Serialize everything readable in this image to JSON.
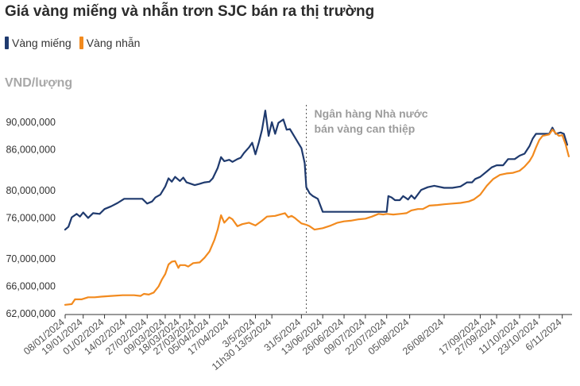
{
  "title": "Giá vàng miếng và nhẫn trơn SJC bán ra thị trường",
  "legend": [
    {
      "label": "Vàng miếng",
      "color": "#1f3a6e"
    },
    {
      "label": "Vàng nhẫn",
      "color": "#f28a1e"
    }
  ],
  "chart_data": {
    "type": "line",
    "title": "Giá vàng miếng và nhẫn trơn SJC bán ra thị trường",
    "ylabel": "VND/lượng",
    "xlabel": "",
    "ylim": [
      62000000,
      93000000
    ],
    "x_range": [
      "2024-01-08",
      "2024-11-11"
    ],
    "grid": false,
    "legend_position": "top-left",
    "y_ticks": [
      62000000,
      66000000,
      70000000,
      76000000,
      80000000,
      86000000,
      90000000
    ],
    "y_tick_labels": [
      "62,000,000",
      "66,000,000",
      "70,000,000",
      "76,000,000",
      "80,000,000",
      "86,000,000",
      "90,000,000"
    ],
    "x_ticks": [
      {
        "date": "2024-01-08",
        "label": "08/01/2024"
      },
      {
        "date": "2024-01-19",
        "label": "19/01/2024"
      },
      {
        "date": "2024-02-01",
        "label": "01/02/2024"
      },
      {
        "date": "2024-02-14",
        "label": "14/02/2024"
      },
      {
        "date": "2024-02-27",
        "label": "27/02/2024"
      },
      {
        "date": "2024-03-09",
        "label": "09/03/2024"
      },
      {
        "date": "2024-03-18",
        "label": "18/03/2024"
      },
      {
        "date": "2024-03-27",
        "label": "27/03/2024"
      },
      {
        "date": "2024-04-05",
        "label": "05/04/2024"
      },
      {
        "date": "2024-04-17",
        "label": "17/04/2024"
      },
      {
        "date": "2024-05-03",
        "label": "3/5/2024"
      },
      {
        "date": "2024-05-13",
        "label": "11h30 13/5/2024"
      },
      {
        "date": "2024-05-31",
        "label": "31/5/2024"
      },
      {
        "date": "2024-06-13",
        "label": "13/06/2024"
      },
      {
        "date": "2024-06-26",
        "label": "26/06/2024"
      },
      {
        "date": "2024-07-09",
        "label": "09/07/2024"
      },
      {
        "date": "2024-07-22",
        "label": "22/07/2024"
      },
      {
        "date": "2024-08-05",
        "label": "05/08/2024"
      },
      {
        "date": "2024-08-26",
        "label": "26/08/2024"
      },
      {
        "date": "2024-09-17",
        "label": "17/09/2024"
      },
      {
        "date": "2024-09-27",
        "label": "27/09/2024"
      },
      {
        "date": "2024-10-11",
        "label": "11/10/2024"
      },
      {
        "date": "2024-10-23",
        "label": "23/10/2024"
      },
      {
        "date": "2024-11-06",
        "label": "6/11/2024"
      }
    ],
    "annotations": [
      {
        "date": "2024-06-03",
        "text": "Ngân hàng Nhà nước bán vàng can thiệp"
      }
    ],
    "series": [
      {
        "name": "Vàng miếng",
        "color": "#1f3a6e",
        "points": [
          [
            "2024-01-08",
            74300000
          ],
          [
            "2024-01-10",
            74700000
          ],
          [
            "2024-01-12",
            76100000
          ],
          [
            "2024-01-15",
            76600000
          ],
          [
            "2024-01-17",
            76200000
          ],
          [
            "2024-01-19",
            76800000
          ],
          [
            "2024-01-22",
            76000000
          ],
          [
            "2024-01-25",
            76700000
          ],
          [
            "2024-01-29",
            76600000
          ],
          [
            "2024-02-01",
            77300000
          ],
          [
            "2024-02-05",
            77700000
          ],
          [
            "2024-02-09",
            78200000
          ],
          [
            "2024-02-13",
            78800000
          ],
          [
            "2024-02-19",
            78800000
          ],
          [
            "2024-02-24",
            78800000
          ],
          [
            "2024-02-27",
            78100000
          ],
          [
            "2024-03-01",
            78400000
          ],
          [
            "2024-03-03",
            79000000
          ],
          [
            "2024-03-06",
            79400000
          ],
          [
            "2024-03-09",
            80600000
          ],
          [
            "2024-03-11",
            81800000
          ],
          [
            "2024-03-13",
            81300000
          ],
          [
            "2024-03-15",
            82000000
          ],
          [
            "2024-03-18",
            81400000
          ],
          [
            "2024-03-20",
            81900000
          ],
          [
            "2024-03-22",
            81200000
          ],
          [
            "2024-03-27",
            80800000
          ],
          [
            "2024-03-30",
            81000000
          ],
          [
            "2024-04-02",
            81200000
          ],
          [
            "2024-04-05",
            81300000
          ],
          [
            "2024-04-07",
            81800000
          ],
          [
            "2024-04-10",
            83300000
          ],
          [
            "2024-04-12",
            84900000
          ],
          [
            "2024-04-14",
            84300000
          ],
          [
            "2024-04-17",
            84500000
          ],
          [
            "2024-04-19",
            84200000
          ],
          [
            "2024-04-22",
            84600000
          ],
          [
            "2024-04-24",
            84800000
          ],
          [
            "2024-04-26",
            85500000
          ],
          [
            "2024-04-29",
            86300000
          ],
          [
            "2024-05-01",
            87000000
          ],
          [
            "2024-05-03",
            85300000
          ],
          [
            "2024-05-05",
            87000000
          ],
          [
            "2024-05-07",
            88900000
          ],
          [
            "2024-05-09",
            91700000
          ],
          [
            "2024-05-11",
            88000000
          ],
          [
            "2024-05-13",
            90000000
          ],
          [
            "2024-05-15",
            88300000
          ],
          [
            "2024-05-17",
            89900000
          ],
          [
            "2024-05-20",
            90400000
          ],
          [
            "2024-05-22",
            88900000
          ],
          [
            "2024-05-24",
            89000000
          ],
          [
            "2024-05-27",
            87800000
          ],
          [
            "2024-05-29",
            87000000
          ],
          [
            "2024-05-31",
            86200000
          ],
          [
            "2024-06-02",
            84000000
          ],
          [
            "2024-06-03",
            80500000
          ],
          [
            "2024-06-05",
            79600000
          ],
          [
            "2024-06-07",
            79200000
          ],
          [
            "2024-06-10",
            78800000
          ],
          [
            "2024-06-13",
            76900000
          ],
          [
            "2024-06-26",
            76900000
          ],
          [
            "2024-07-09",
            76900000
          ],
          [
            "2024-07-22",
            76900000
          ],
          [
            "2024-07-23",
            79200000
          ],
          [
            "2024-07-25",
            79000000
          ],
          [
            "2024-07-27",
            78600000
          ],
          [
            "2024-07-30",
            78600000
          ],
          [
            "2024-08-01",
            79200000
          ],
          [
            "2024-08-04",
            78700000
          ],
          [
            "2024-08-06",
            79300000
          ],
          [
            "2024-08-08",
            78800000
          ],
          [
            "2024-08-12",
            80100000
          ],
          [
            "2024-08-16",
            80500000
          ],
          [
            "2024-08-20",
            80700000
          ],
          [
            "2024-08-26",
            80400000
          ],
          [
            "2024-08-31",
            80400000
          ],
          [
            "2024-09-05",
            80600000
          ],
          [
            "2024-09-09",
            81200000
          ],
          [
            "2024-09-12",
            81200000
          ],
          [
            "2024-09-14",
            81700000
          ],
          [
            "2024-09-17",
            82000000
          ],
          [
            "2024-09-21",
            82800000
          ],
          [
            "2024-09-24",
            83400000
          ],
          [
            "2024-09-27",
            83700000
          ],
          [
            "2024-10-01",
            83700000
          ],
          [
            "2024-10-04",
            84600000
          ],
          [
            "2024-10-08",
            84600000
          ],
          [
            "2024-10-11",
            85100000
          ],
          [
            "2024-10-14",
            85400000
          ],
          [
            "2024-10-17",
            86500000
          ],
          [
            "2024-10-19",
            87600000
          ],
          [
            "2024-10-21",
            88300000
          ],
          [
            "2024-10-25",
            88300000
          ],
          [
            "2024-10-29",
            88300000
          ],
          [
            "2024-10-31",
            89200000
          ],
          [
            "2024-11-02",
            88300000
          ],
          [
            "2024-11-05",
            88500000
          ],
          [
            "2024-11-07",
            88300000
          ],
          [
            "2024-11-09",
            86700000
          ]
        ]
      },
      {
        "name": "Vàng nhẫn",
        "color": "#f28a1e",
        "points": [
          [
            "2024-01-08",
            63300000
          ],
          [
            "2024-01-12",
            63400000
          ],
          [
            "2024-01-14",
            64100000
          ],
          [
            "2024-01-18",
            64100000
          ],
          [
            "2024-01-22",
            64400000
          ],
          [
            "2024-01-26",
            64400000
          ],
          [
            "2024-01-30",
            64500000
          ],
          [
            "2024-02-05",
            64600000
          ],
          [
            "2024-02-12",
            64700000
          ],
          [
            "2024-02-19",
            64700000
          ],
          [
            "2024-02-23",
            64600000
          ],
          [
            "2024-02-25",
            64900000
          ],
          [
            "2024-02-28",
            64800000
          ],
          [
            "2024-03-02",
            65100000
          ],
          [
            "2024-03-05",
            66000000
          ],
          [
            "2024-03-07",
            67000000
          ],
          [
            "2024-03-09",
            67800000
          ],
          [
            "2024-03-11",
            69200000
          ],
          [
            "2024-03-13",
            69600000
          ],
          [
            "2024-03-15",
            69700000
          ],
          [
            "2024-03-17",
            68700000
          ],
          [
            "2024-03-18",
            69100000
          ],
          [
            "2024-03-21",
            69100000
          ],
          [
            "2024-03-23",
            68900000
          ],
          [
            "2024-03-26",
            69400000
          ],
          [
            "2024-03-30",
            69500000
          ],
          [
            "2024-04-02",
            70200000
          ],
          [
            "2024-04-05",
            71100000
          ],
          [
            "2024-04-08",
            72800000
          ],
          [
            "2024-04-10",
            74300000
          ],
          [
            "2024-04-12",
            76400000
          ],
          [
            "2024-04-14",
            75300000
          ],
          [
            "2024-04-17",
            76100000
          ],
          [
            "2024-04-19",
            75800000
          ],
          [
            "2024-04-22",
            74800000
          ],
          [
            "2024-04-25",
            75100000
          ],
          [
            "2024-04-29",
            75300000
          ],
          [
            "2024-05-03",
            74900000
          ],
          [
            "2024-05-07",
            75600000
          ],
          [
            "2024-05-10",
            76200000
          ],
          [
            "2024-05-15",
            76300000
          ],
          [
            "2024-05-18",
            76500000
          ],
          [
            "2024-05-21",
            76700000
          ],
          [
            "2024-05-23",
            76100000
          ],
          [
            "2024-05-25",
            76300000
          ],
          [
            "2024-05-27",
            76000000
          ],
          [
            "2024-05-29",
            75600000
          ],
          [
            "2024-05-31",
            75200000
          ],
          [
            "2024-06-03",
            75000000
          ],
          [
            "2024-06-05",
            74800000
          ],
          [
            "2024-06-08",
            74300000
          ],
          [
            "2024-06-13",
            74500000
          ],
          [
            "2024-06-18",
            74900000
          ],
          [
            "2024-06-22",
            75300000
          ],
          [
            "2024-06-26",
            75500000
          ],
          [
            "2024-06-30",
            75600000
          ],
          [
            "2024-07-05",
            75800000
          ],
          [
            "2024-07-09",
            75900000
          ],
          [
            "2024-07-13",
            76200000
          ],
          [
            "2024-07-17",
            76600000
          ],
          [
            "2024-07-20",
            76500000
          ],
          [
            "2024-07-22",
            76600000
          ],
          [
            "2024-07-26",
            76500000
          ],
          [
            "2024-07-30",
            76600000
          ],
          [
            "2024-08-03",
            76700000
          ],
          [
            "2024-08-06",
            77100000
          ],
          [
            "2024-08-10",
            77300000
          ],
          [
            "2024-08-13",
            77300000
          ],
          [
            "2024-08-17",
            77800000
          ],
          [
            "2024-08-22",
            77900000
          ],
          [
            "2024-08-26",
            78000000
          ],
          [
            "2024-08-31",
            78100000
          ],
          [
            "2024-09-05",
            78200000
          ],
          [
            "2024-09-10",
            78400000
          ],
          [
            "2024-09-13",
            78700000
          ],
          [
            "2024-09-17",
            79400000
          ],
          [
            "2024-09-21",
            80700000
          ],
          [
            "2024-09-25",
            81700000
          ],
          [
            "2024-09-29",
            82300000
          ],
          [
            "2024-10-03",
            82500000
          ],
          [
            "2024-10-07",
            82600000
          ],
          [
            "2024-10-11",
            82900000
          ],
          [
            "2024-10-14",
            83500000
          ],
          [
            "2024-10-17",
            84300000
          ],
          [
            "2024-10-19",
            85100000
          ],
          [
            "2024-10-21",
            86300000
          ],
          [
            "2024-10-23",
            87400000
          ],
          [
            "2024-10-25",
            88000000
          ],
          [
            "2024-10-29",
            88200000
          ],
          [
            "2024-10-31",
            88900000
          ],
          [
            "2024-11-02",
            88400000
          ],
          [
            "2024-11-04",
            88000000
          ],
          [
            "2024-11-06",
            88100000
          ],
          [
            "2024-11-08",
            86800000
          ],
          [
            "2024-11-10",
            85000000
          ]
        ]
      }
    ]
  }
}
